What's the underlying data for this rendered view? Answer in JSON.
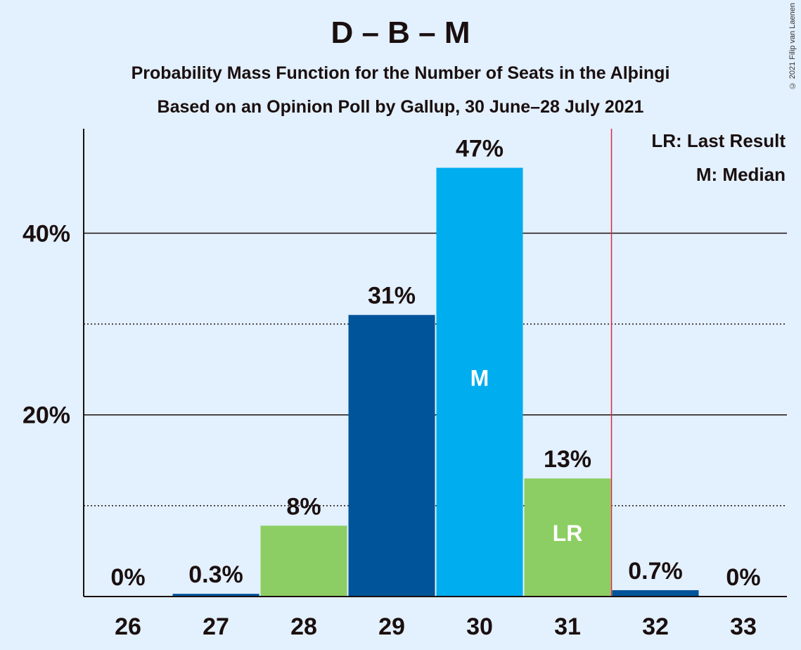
{
  "header": {
    "title": "D – B – M",
    "subtitle": "Probability Mass Function for the Number of Seats in the Alþingi",
    "subtitle2": "Based on an Opinion Poll by Gallup, 30 June–28 July 2021",
    "copyright": "© 2021 Filip van Laenen"
  },
  "legend": {
    "lr": "LR: Last Result",
    "m": "M: Median"
  },
  "colors": {
    "background": "#E3F0FD",
    "dark_blue": "#00549A",
    "light_blue": "#00ADEF",
    "green": "#8CCE63",
    "last_result_line": "#E0263A"
  },
  "chart_data": {
    "type": "bar",
    "categories": [
      "26",
      "27",
      "28",
      "29",
      "30",
      "31",
      "32",
      "33"
    ],
    "values": [
      0,
      0.3,
      7.8,
      31,
      47.2,
      13,
      0.7,
      0
    ],
    "value_labels": [
      "0%",
      "0.3%",
      "8%",
      "31%",
      "47%",
      "13%",
      "0.7%",
      "0%"
    ],
    "bar_colors": [
      "dark_blue",
      "dark_blue",
      "green",
      "dark_blue",
      "light_blue",
      "green",
      "dark_blue",
      "dark_blue"
    ],
    "bar_marks": [
      "",
      "",
      "",
      "",
      "M",
      "LR",
      "",
      ""
    ],
    "ylim": [
      0,
      51.5
    ],
    "yticks": [
      {
        "value": 20,
        "label": "20%",
        "style": "solid"
      },
      {
        "value": 40,
        "label": "40%",
        "style": "solid"
      }
    ],
    "minor_gridlines": [
      10,
      30
    ],
    "last_result_seat": 31,
    "median_seat": 30,
    "grid": true,
    "legend_position": "top-right"
  }
}
